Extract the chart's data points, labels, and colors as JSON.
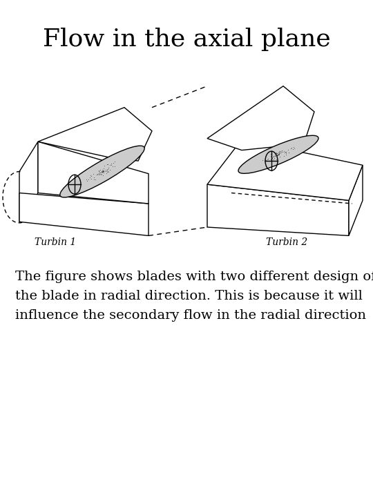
{
  "title": "Flow in the axial plane",
  "title_fontsize": 26,
  "title_font": "serif",
  "body_text": "The figure shows blades with two different design of\nthe blade in radial direction. This is because it will\ninfluence the secondary flow in the radial direction",
  "body_fontsize": 14,
  "body_font": "serif",
  "label1": "Turbin 1",
  "label2": "Turbin 2",
  "label_fontsize": 10,
  "label_font": "serif",
  "bg_color": "#ffffff",
  "line_color": "#000000",
  "blade_fill": "#cccccc",
  "stipple_color": "#444444",
  "fig_width": 5.4,
  "fig_height": 7.2,
  "dpi": 100
}
